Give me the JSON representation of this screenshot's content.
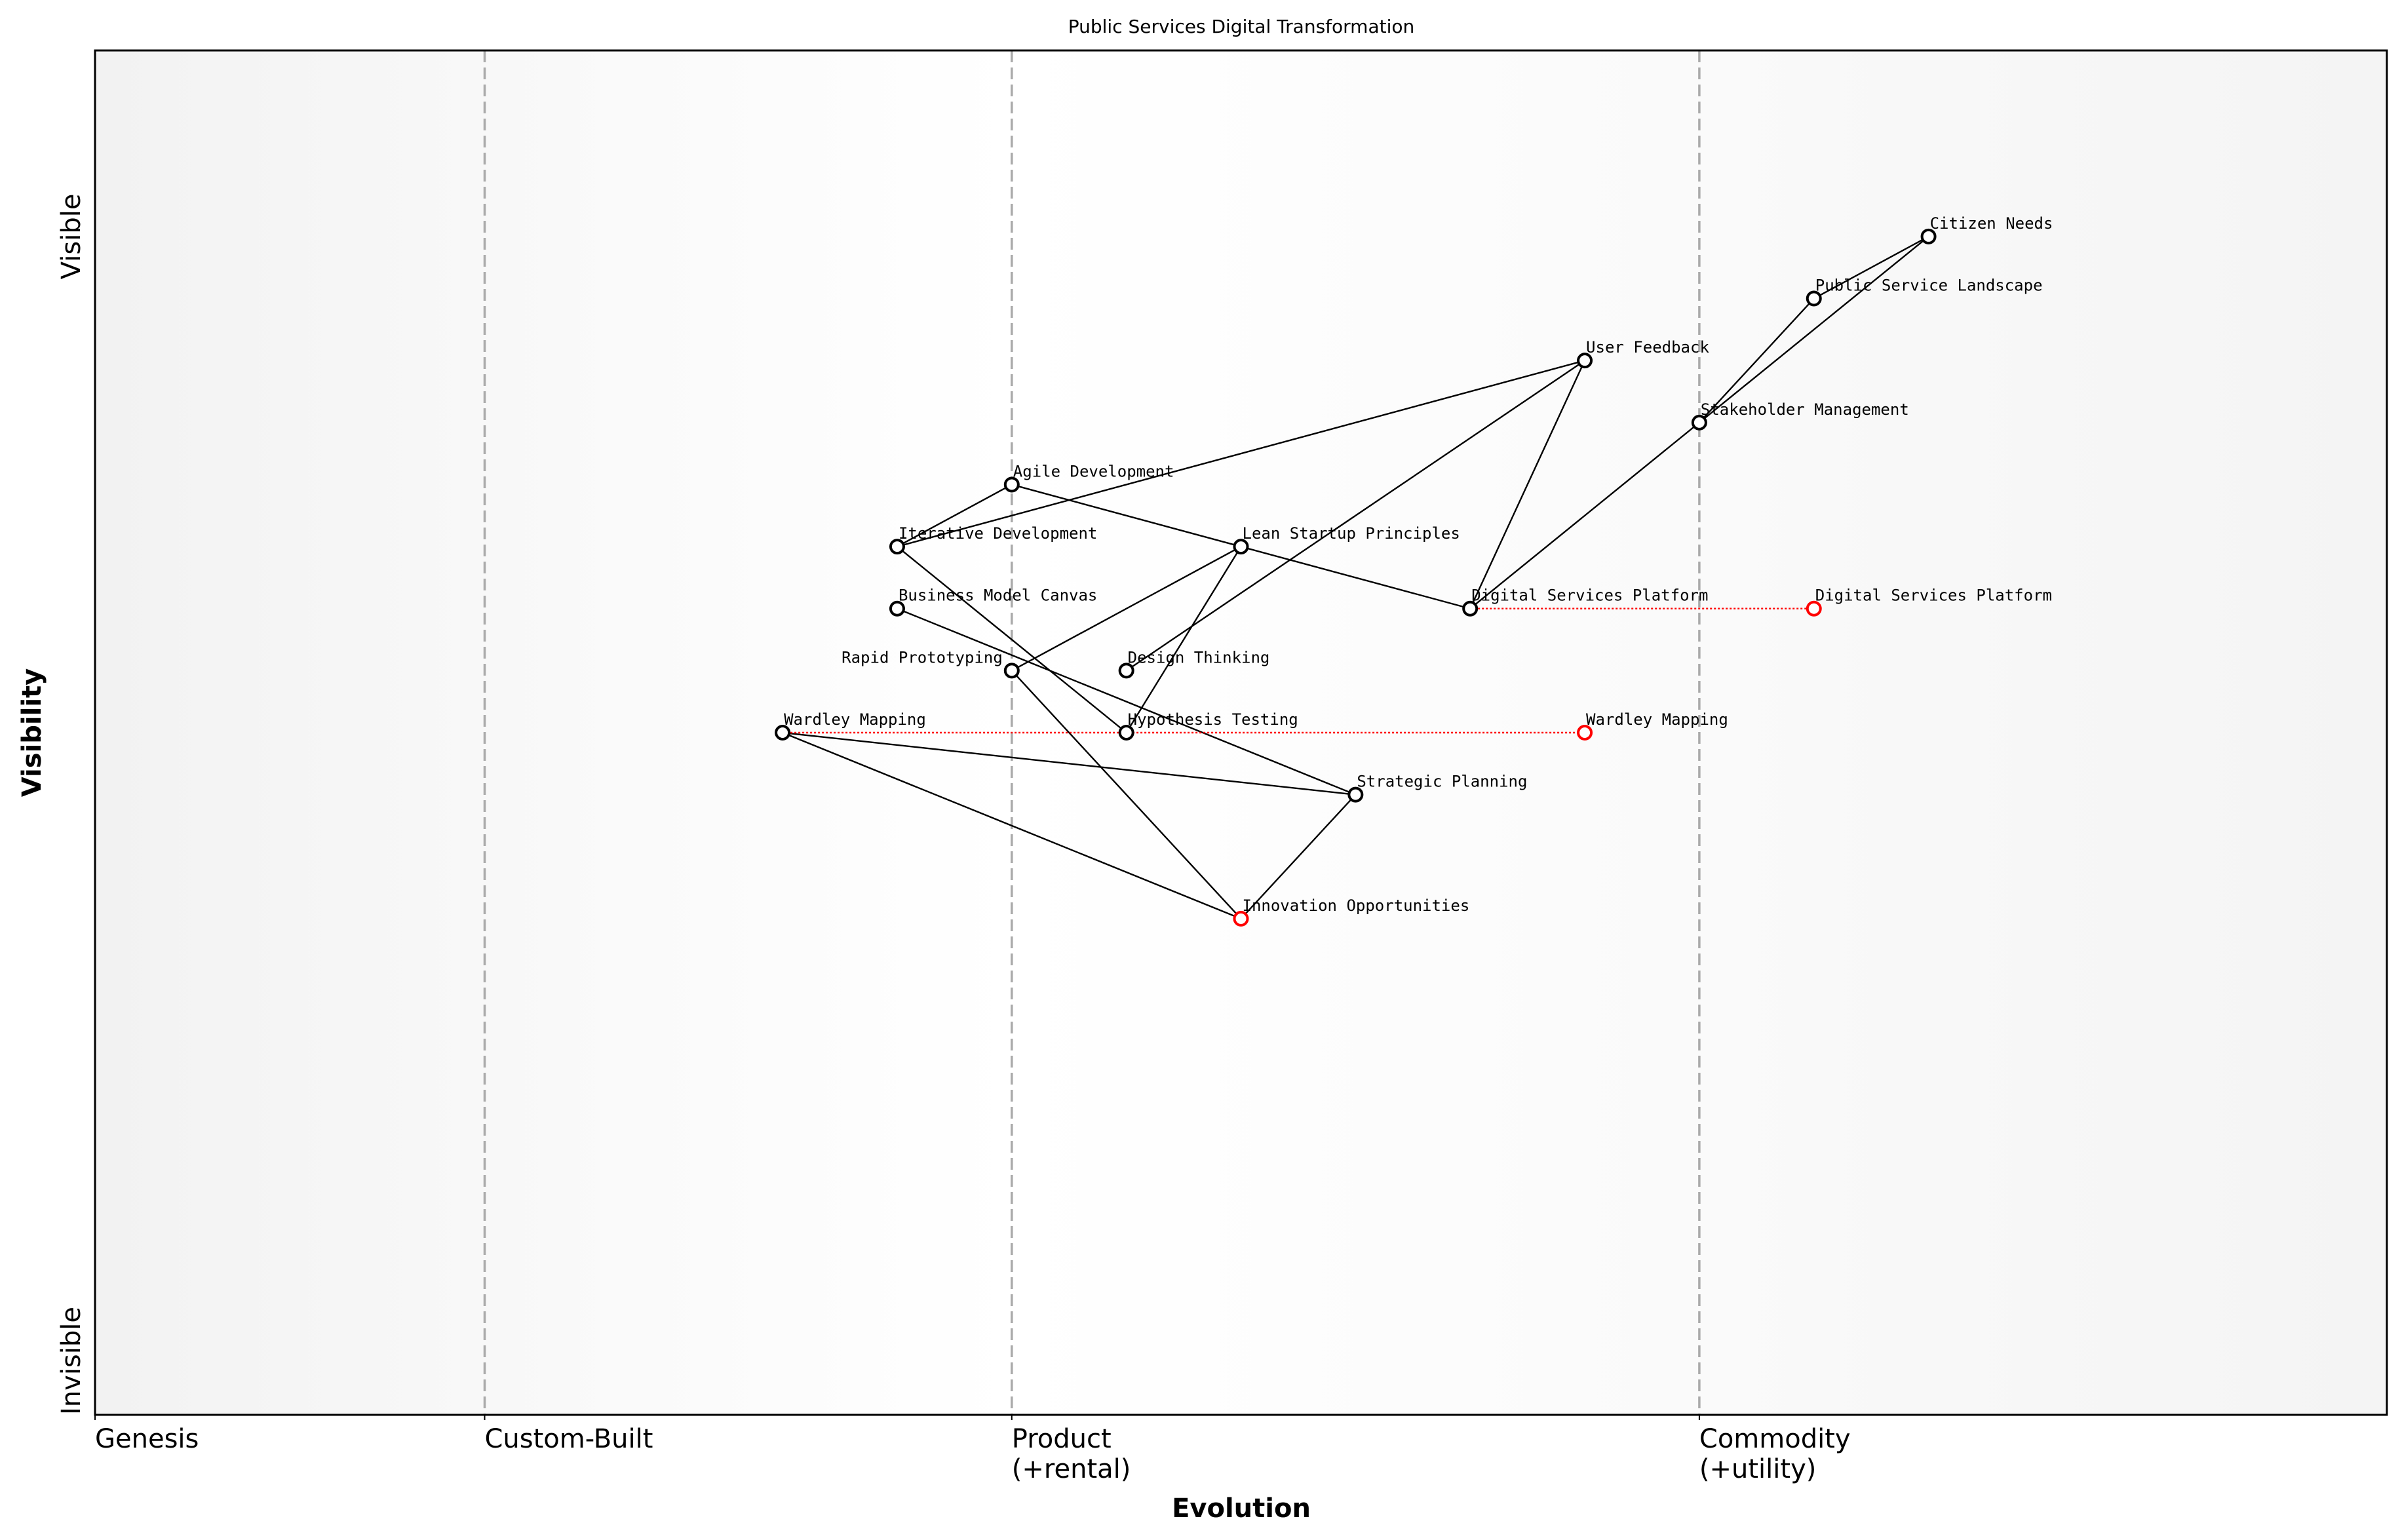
{
  "chart_data": {
    "type": "scatter",
    "title": "Public Services Digital Transformation",
    "xlabel": "Evolution",
    "ylabel": "Visibility",
    "xlim": [
      0,
      1
    ],
    "ylim": [
      0,
      1.1
    ],
    "grid": false,
    "stage_dividers": [
      0.17,
      0.4,
      0.7
    ],
    "x_ticks": [
      {
        "value": 0,
        "label": "Genesis"
      },
      {
        "value": 0.17,
        "label": "Custom-Built"
      },
      {
        "value": 0.4,
        "label": "Product\n(+rental)"
      },
      {
        "value": 0.7,
        "label": "Commodity\n(+utility)"
      }
    ],
    "y_ticks": [
      {
        "value": 0.95,
        "label": "Visible"
      },
      {
        "value": 0,
        "label": "Invisible"
      }
    ],
    "components": [
      {
        "name": "Citizen Needs",
        "x": 0.8,
        "y": 0.95
      },
      {
        "name": "Public Service Landscape",
        "x": 0.75,
        "y": 0.9
      },
      {
        "name": "User Feedback",
        "x": 0.65,
        "y": 0.85
      },
      {
        "name": "Stakeholder Management",
        "x": 0.7,
        "y": 0.8
      },
      {
        "name": "Agile Development",
        "x": 0.4,
        "y": 0.75
      },
      {
        "name": "Iterative Development",
        "x": 0.35,
        "y": 0.7
      },
      {
        "name": "Lean Startup Principles",
        "x": 0.5,
        "y": 0.7
      },
      {
        "name": "Digital Services Platform",
        "x": 0.6,
        "y": 0.65
      },
      {
        "name": "Business Model Canvas",
        "x": 0.35,
        "y": 0.65
      },
      {
        "name": "Rapid Prototyping",
        "x": 0.4,
        "y": 0.6
      },
      {
        "name": "Design Thinking",
        "x": 0.45,
        "y": 0.6
      },
      {
        "name": "Wardley Mapping",
        "x": 0.3,
        "y": 0.55
      },
      {
        "name": "Hypothesis Testing",
        "x": 0.45,
        "y": 0.55
      },
      {
        "name": "Strategic Planning",
        "x": 0.55,
        "y": 0.5
      },
      {
        "name": "Innovation Opportunities",
        "x": 0.5,
        "y": 0.4,
        "highlight": true
      }
    ],
    "links": [
      [
        "Citizen Needs",
        "Public Service Landscape"
      ],
      [
        "Citizen Needs",
        "Stakeholder Management"
      ],
      [
        "Public Service Landscape",
        "Stakeholder Management"
      ],
      [
        "Stakeholder Management",
        "Digital Services Platform"
      ],
      [
        "User Feedback",
        "Iterative Development"
      ],
      [
        "User Feedback",
        "Design Thinking"
      ],
      [
        "User Feedback",
        "Digital Services Platform"
      ],
      [
        "Agile Development",
        "Iterative Development"
      ],
      [
        "Agile Development",
        "Lean Startup Principles"
      ],
      [
        "Lean Startup Principles",
        "Digital Services Platform"
      ],
      [
        "Iterative Development",
        "Hypothesis Testing"
      ],
      [
        "Lean Startup Principles",
        "Rapid Prototyping"
      ],
      [
        "Lean Startup Principles",
        "Hypothesis Testing"
      ],
      [
        "Business Model Canvas",
        "Strategic Planning"
      ],
      [
        "Rapid Prototyping",
        "Innovation Opportunities"
      ],
      [
        "Wardley Mapping",
        "Strategic Planning"
      ],
      [
        "Wardley Mapping",
        "Innovation Opportunities"
      ],
      [
        "Strategic Planning",
        "Innovation Opportunities"
      ]
    ],
    "evolutions": [
      {
        "name": "Digital Services Platform",
        "from_x": 0.6,
        "to_x": 0.75,
        "y": 0.65
      },
      {
        "name": "Wardley Mapping",
        "from_x": 0.3,
        "to_x": 0.65,
        "y": 0.55
      }
    ],
    "colors": {
      "node": "#000000",
      "evolved": "#ff0000",
      "divider": "#aaaaaa",
      "genesis_bg": "#f3f3f3",
      "commodity_bg": "#f7f7f7"
    }
  }
}
